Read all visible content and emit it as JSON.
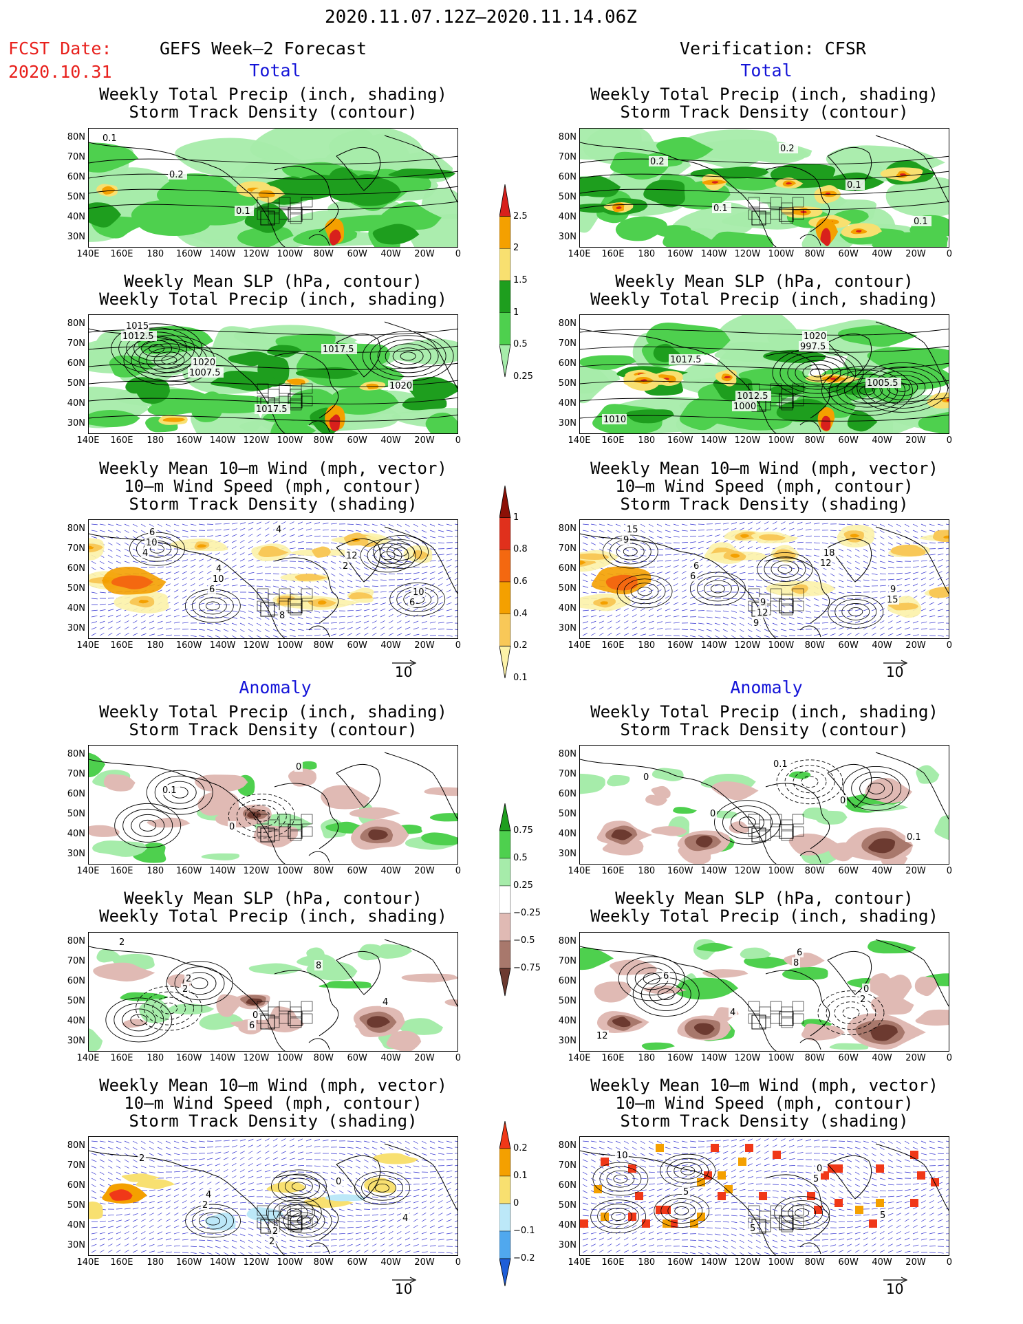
{
  "header": {
    "main_title": "2020.11.07.12Z–2020.11.14.06Z",
    "fcst_date_label": "FCST Date:",
    "fcst_date_value": "2020.10.31",
    "left_heading": "GEFS Week–2 Forecast",
    "right_heading": "Verification: CFSR"
  },
  "sections": {
    "total": "Total",
    "anomaly": "Anomaly"
  },
  "panel_titles": {
    "precip_storm": [
      "Weekly Total Precip (inch, shading)",
      "Storm Track Density (contour)"
    ],
    "slp_precip": [
      "Weekly Mean SLP (hPa, contour)",
      "Weekly Total Precip (inch, shading)"
    ],
    "wind_storm": [
      "Weekly Mean 10–m Wind (mph, vector)",
      "10–m Wind Speed (mph, contour)",
      "Storm Track Density (shading)"
    ]
  },
  "axes": {
    "lat_labels": [
      "80N",
      "70N",
      "60N",
      "50N",
      "40N",
      "30N"
    ],
    "lon_labels": [
      "140E",
      "160E",
      "180",
      "160W",
      "140W",
      "120W",
      "100W",
      "80W",
      "60W",
      "40W",
      "20W",
      "0"
    ]
  },
  "vector_scale": "10",
  "colorbars": {
    "precip_total": {
      "labels": [
        "2.5",
        "2",
        "1.5",
        "1",
        "0.5",
        "0.25"
      ],
      "colors": [
        "#d8201c",
        "#f4a000",
        "#f8e070",
        "#1e9e1e",
        "#4ed04e",
        "#a6ecaa"
      ]
    },
    "storm_total": {
      "labels": [
        "1",
        "0.8",
        "0.6",
        "0.4",
        "0.2",
        "0.1"
      ],
      "colors": [
        "#8c1006",
        "#e0301c",
        "#f46810",
        "#f4a000",
        "#f8c858",
        "#fcf2a8"
      ]
    },
    "precip_anom": {
      "labels": [
        "0.75",
        "0.5",
        "0.25",
        "−0.25",
        "−0.5",
        "−0.75"
      ],
      "colors": [
        "#1e9e1e",
        "#4ed04e",
        "#a6ecaa",
        "#ffffff",
        "#e0bab4",
        "#a8786c",
        "#6c3a30"
      ]
    },
    "storm_anom": {
      "labels": [
        "0.2",
        "0.1",
        "0",
        "−0.1",
        "−0.2"
      ],
      "colors": [
        "#f03818",
        "#f4a000",
        "#f8e070",
        "#bce8f8",
        "#50a8ee",
        "#1e5ed8"
      ]
    }
  },
  "panels": [
    {
      "id": "fcst-total-precip",
      "type": "precip",
      "contours": [
        "0.1",
        "0.2",
        "0.1"
      ]
    },
    {
      "id": "fcst-total-slp",
      "type": "slp",
      "contours": [
        "1012.5",
        "1007.5",
        "1017.5",
        "1017.5",
        "1020",
        "1015",
        "1020"
      ]
    },
    {
      "id": "fcst-total-wind",
      "type": "wind",
      "contours": [
        "4",
        "6",
        "4",
        "2",
        "6",
        "10",
        "10",
        "8",
        "12",
        "10",
        "6",
        "4"
      ]
    },
    {
      "id": "fcst-anom-precip",
      "type": "precip-anom",
      "contours": [
        "0.1",
        "0",
        "0"
      ]
    },
    {
      "id": "fcst-anom-slp",
      "type": "slp-anom",
      "contours": [
        "2",
        "6",
        "8",
        "4",
        "2",
        "2",
        "0"
      ]
    },
    {
      "id": "fcst-anom-wind",
      "type": "wind-anom",
      "contours": [
        "2",
        "2",
        "0",
        "4",
        "2",
        "4",
        "2"
      ]
    },
    {
      "id": "ver-total-precip",
      "type": "precip",
      "contours": [
        "0.1",
        "0.2",
        "0.1",
        "0.1",
        "0.2"
      ]
    },
    {
      "id": "ver-total-slp",
      "type": "slp",
      "contours": [
        "1000",
        "997.5",
        "1005.5",
        "1010",
        "1017.5",
        "1012.5",
        "1020"
      ]
    },
    {
      "id": "ver-total-wind",
      "type": "wind",
      "contours": [
        "9",
        "12",
        "15",
        "9",
        "6",
        "12",
        "18",
        "9",
        "15",
        "6",
        "9"
      ]
    },
    {
      "id": "ver-anom-precip",
      "type": "precip-anom",
      "contours": [
        "0.1",
        "0",
        "0.1",
        "0",
        "0"
      ]
    },
    {
      "id": "ver-anom-slp",
      "type": "slp-anom",
      "contours": [
        "8",
        "2",
        "12",
        "6",
        "4",
        "6",
        "0"
      ]
    },
    {
      "id": "ver-anom-wind",
      "type": "wind-anom",
      "contours": [
        "5",
        "5",
        "10",
        "5",
        "5",
        "0"
      ]
    }
  ]
}
